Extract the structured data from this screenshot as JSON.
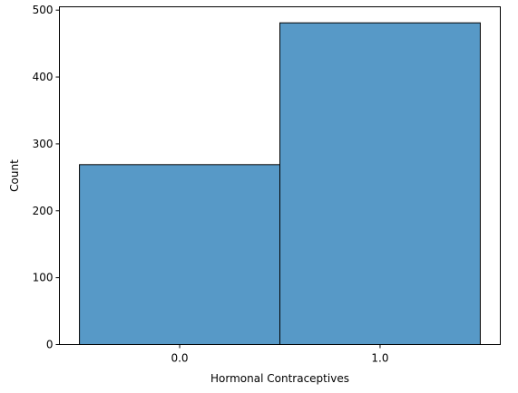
{
  "chart_data": {
    "type": "bar",
    "title": "",
    "xlabel": "Hormonal Contraceptives",
    "ylabel": "Count",
    "categories": [
      "0.0",
      "1.0"
    ],
    "values": [
      269,
      481
    ],
    "ylim": [
      0,
      505
    ],
    "yticks": [
      0,
      100,
      200,
      300,
      400,
      500
    ],
    "grid": false,
    "legend": "none",
    "bar_color": "#5799c7",
    "edge_color": "#000000"
  }
}
